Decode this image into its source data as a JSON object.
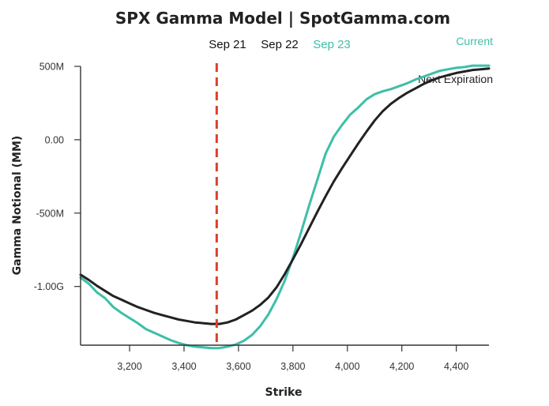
{
  "chart_data": {
    "type": "line",
    "title": "SPX Gamma Model | SpotGamma.com",
    "xlabel": "Strike",
    "ylabel": "Gamma Notional (MM)",
    "xlim": [
      3020,
      4520
    ],
    "ylim": [
      -1400,
      500
    ],
    "x_ticks": [
      3200,
      3400,
      3600,
      3800,
      4000,
      4200,
      4400
    ],
    "x_tick_labels": [
      "3,200",
      "3,400",
      "3,600",
      "3,800",
      "4,000",
      "4,200",
      "4,400"
    ],
    "y_ticks": [
      500,
      0,
      -500,
      -1000
    ],
    "y_tick_labels": [
      "500M",
      "0.00",
      "-500M",
      "-1.00G"
    ],
    "expirations": [
      {
        "label": "Sep 21",
        "color": "#111111"
      },
      {
        "label": "Sep 22",
        "color": "#111111"
      },
      {
        "label": "Sep 23",
        "color": "#3dbfa8"
      }
    ],
    "reference_line": {
      "x": 3520,
      "color": "#d9412b"
    },
    "legend_position": "top-right",
    "series": [
      {
        "name": "Current",
        "color": "#3dbfa8",
        "x": [
          3020,
          3050,
          3080,
          3110,
          3140,
          3170,
          3200,
          3230,
          3260,
          3290,
          3320,
          3350,
          3380,
          3410,
          3440,
          3470,
          3500,
          3530,
          3560,
          3590,
          3620,
          3650,
          3680,
          3710,
          3740,
          3770,
          3800,
          3830,
          3860,
          3890,
          3920,
          3950,
          3980,
          4010,
          4040,
          4070,
          4100,
          4130,
          4160,
          4190,
          4220,
          4250,
          4280,
          4310,
          4340,
          4370,
          4400,
          4430,
          4460,
          4490,
          4520
        ],
        "y": [
          -940,
          -980,
          -1040,
          -1080,
          -1140,
          -1180,
          -1215,
          -1250,
          -1290,
          -1315,
          -1340,
          -1365,
          -1385,
          -1400,
          -1410,
          -1415,
          -1420,
          -1420,
          -1410,
          -1395,
          -1370,
          -1330,
          -1270,
          -1190,
          -1085,
          -960,
          -805,
          -630,
          -445,
          -270,
          -95,
          20,
          100,
          170,
          220,
          275,
          310,
          330,
          345,
          365,
          385,
          410,
          430,
          450,
          470,
          480,
          490,
          495,
          505,
          505,
          505
        ]
      },
      {
        "name": "Next Expiration",
        "color": "#222222",
        "x": [
          3020,
          3050,
          3080,
          3110,
          3140,
          3170,
          3200,
          3230,
          3260,
          3290,
          3320,
          3350,
          3380,
          3410,
          3440,
          3470,
          3500,
          3530,
          3560,
          3590,
          3620,
          3650,
          3680,
          3710,
          3740,
          3770,
          3800,
          3830,
          3860,
          3890,
          3920,
          3950,
          3980,
          4010,
          4040,
          4070,
          4100,
          4130,
          4160,
          4190,
          4220,
          4250,
          4280,
          4310,
          4340,
          4370,
          4400,
          4430,
          4460,
          4490,
          4520
        ],
        "y": [
          -920,
          -955,
          -995,
          -1030,
          -1065,
          -1090,
          -1115,
          -1140,
          -1160,
          -1180,
          -1195,
          -1210,
          -1225,
          -1235,
          -1245,
          -1250,
          -1255,
          -1255,
          -1245,
          -1225,
          -1195,
          -1165,
          -1125,
          -1075,
          -1005,
          -915,
          -815,
          -710,
          -600,
          -490,
          -385,
          -285,
          -195,
          -110,
          -25,
          55,
          130,
          195,
          245,
          285,
          320,
          350,
          380,
          405,
          425,
          440,
          455,
          465,
          475,
          480,
          485
        ]
      }
    ]
  }
}
